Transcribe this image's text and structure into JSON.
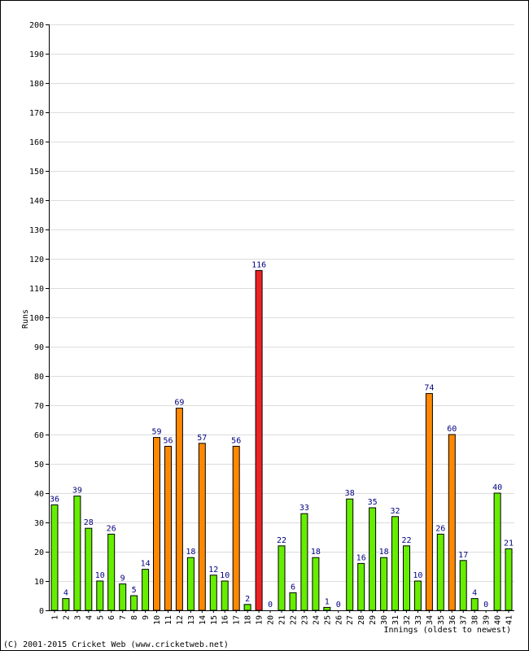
{
  "chart_data": {
    "type": "bar",
    "title": "",
    "xlabel": "Innings (oldest to newest)",
    "ylabel": "Runs",
    "ylim": [
      0,
      200
    ],
    "ytick_step": 10,
    "grid": true,
    "categories": [
      "1",
      "2",
      "3",
      "4",
      "5",
      "6",
      "7",
      "8",
      "9",
      "10",
      "11",
      "12",
      "13",
      "14",
      "15",
      "16",
      "17",
      "18",
      "19",
      "20",
      "21",
      "22",
      "23",
      "24",
      "25",
      "26",
      "27",
      "28",
      "29",
      "30",
      "31",
      "32",
      "33",
      "34",
      "35",
      "36",
      "37",
      "38",
      "39",
      "40",
      "41"
    ],
    "values": [
      36,
      4,
      39,
      28,
      10,
      26,
      9,
      5,
      14,
      59,
      56,
      69,
      18,
      57,
      12,
      10,
      56,
      2,
      116,
      0,
      22,
      6,
      33,
      18,
      1,
      0,
      38,
      16,
      35,
      18,
      32,
      22,
      10,
      74,
      26,
      60,
      17,
      4,
      0,
      40,
      21
    ],
    "bar_colors": {
      "under_50": "#66ee00",
      "fifty": "#ff8800",
      "hundred": "#ee2222",
      "outline": "#000000"
    }
  },
  "footer": "(C) 2001-2015 Cricket Web (www.cricketweb.net)"
}
